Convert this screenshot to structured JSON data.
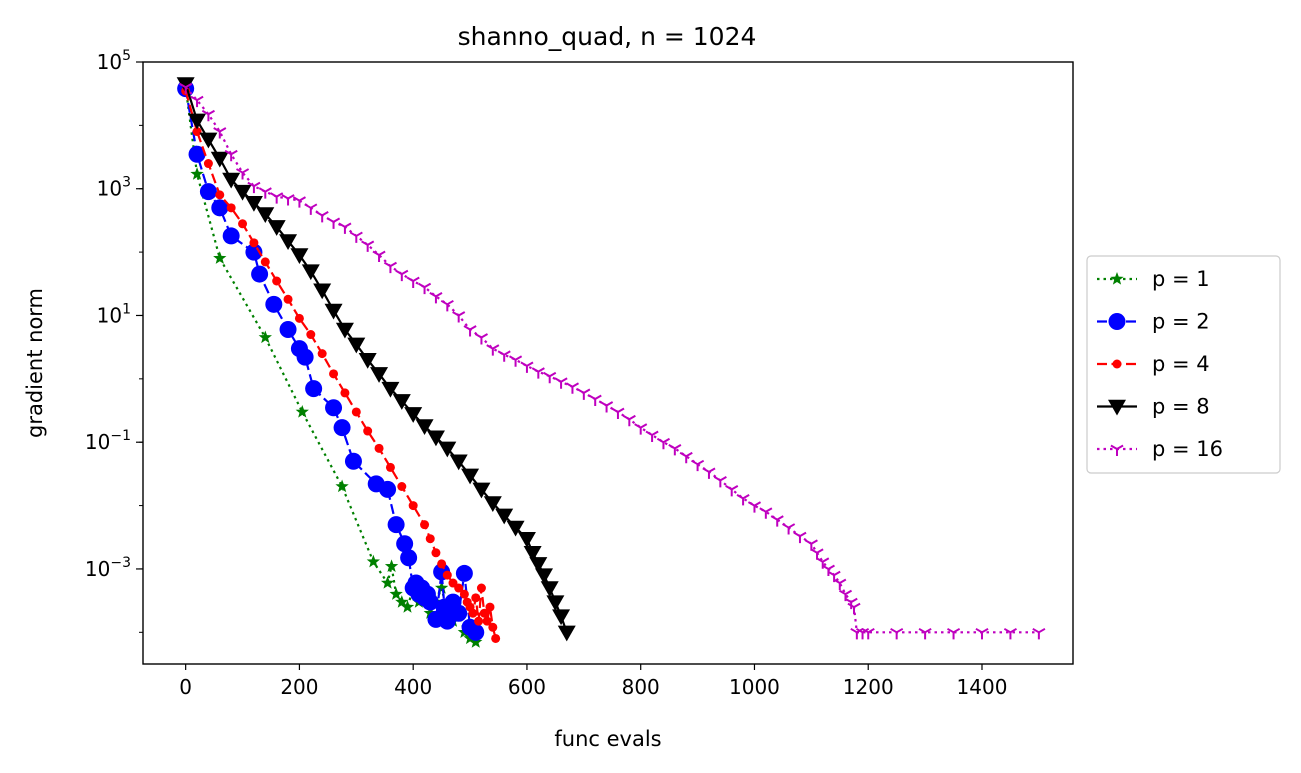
{
  "chart_data": {
    "type": "line",
    "title": "shanno_quad, n = 1024",
    "xlabel": "func evals",
    "ylabel": "gradient norm",
    "yscale": "log",
    "xlim": [
      -75,
      1560
    ],
    "ylim_exp": [
      -4.5,
      5
    ],
    "xticks": [
      0,
      200,
      400,
      600,
      800,
      1000,
      1200,
      1400
    ],
    "xtick_labels": [
      "0",
      "200",
      "400",
      "600",
      "800",
      "1000",
      "1200",
      "1400"
    ],
    "ytick_exps": [
      -3,
      -1,
      1,
      3,
      5
    ],
    "ytick_labels": [
      {
        "base": "10",
        "exp": "−3"
      },
      {
        "base": "10",
        "exp": "−1"
      },
      {
        "base": "10",
        "exp": "1"
      },
      {
        "base": "10",
        "exp": "3"
      },
      {
        "base": "10",
        "exp": "5"
      }
    ],
    "grid": false,
    "legend_position": "center-right, outside",
    "series": [
      {
        "name": "p = 1",
        "color": "#008000",
        "dash": "dotted",
        "marker": "star",
        "x": [
          0,
          20,
          60,
          140,
          205,
          275,
          330,
          355,
          362,
          370,
          380,
          390,
          400,
          410,
          420,
          430,
          440,
          450,
          460,
          470,
          480,
          490,
          500,
          510
        ],
        "y": [
          40000,
          1700,
          80,
          4.5,
          0.3,
          0.02,
          0.0013,
          0.0006,
          0.0011,
          0.0004,
          0.0003,
          0.00025,
          0.0005,
          0.0003,
          0.0004,
          0.0002,
          0.0003,
          0.0005,
          0.0002,
          0.00015,
          0.0002,
          0.0001,
          8e-05,
          7e-05
        ]
      },
      {
        "name": "p = 2",
        "color": "#0000ff",
        "dash": "dashed",
        "marker": "circle",
        "x": [
          0,
          20,
          40,
          60,
          80,
          120,
          130,
          155,
          180,
          200,
          210,
          225,
          260,
          275,
          295,
          335,
          355,
          370,
          385,
          392,
          400,
          405,
          410,
          415,
          420,
          425,
          430,
          440,
          450,
          455,
          460,
          470,
          480,
          490,
          500,
          510
        ],
        "y": [
          38000,
          3500,
          900,
          500,
          180,
          100,
          45,
          15,
          6,
          3,
          2.2,
          0.7,
          0.35,
          0.17,
          0.05,
          0.022,
          0.018,
          0.005,
          0.0025,
          0.0015,
          0.0005,
          0.0006,
          0.0004,
          0.0005,
          0.00035,
          0.0004,
          0.0003,
          0.00016,
          0.0009,
          0.00025,
          0.00015,
          0.0003,
          0.0002,
          0.00085,
          0.00012,
          0.0001
        ]
      },
      {
        "name": "p = 4",
        "color": "#ff0000",
        "dash": "dashed",
        "marker": "point",
        "x": [
          0,
          20,
          40,
          60,
          80,
          100,
          120,
          140,
          160,
          180,
          200,
          220,
          240,
          260,
          280,
          300,
          320,
          340,
          360,
          380,
          400,
          420,
          430,
          440,
          450,
          460,
          470,
          480,
          490,
          495,
          500,
          505,
          510,
          515,
          520,
          525,
          530,
          535,
          540,
          545
        ],
        "y": [
          35000,
          8000,
          2500,
          800,
          500,
          280,
          140,
          70,
          35,
          18,
          9,
          5,
          2.5,
          1.2,
          0.6,
          0.3,
          0.15,
          0.08,
          0.04,
          0.02,
          0.01,
          0.005,
          0.003,
          0.0018,
          0.0012,
          0.0008,
          0.0006,
          0.0005,
          0.0004,
          0.0003,
          0.00025,
          0.0002,
          0.00035,
          0.00015,
          0.0005,
          0.0002,
          0.00015,
          0.00025,
          0.00012,
          8e-05
        ]
      },
      {
        "name": "p = 8",
        "color": "#000000",
        "dash": "solid",
        "marker": "triangle_down",
        "x": [
          0,
          20,
          40,
          60,
          80,
          100,
          120,
          140,
          160,
          180,
          200,
          220,
          240,
          260,
          280,
          300,
          320,
          340,
          360,
          380,
          400,
          420,
          440,
          460,
          480,
          500,
          520,
          540,
          560,
          580,
          600,
          610,
          620,
          630,
          640,
          650,
          660,
          670
        ],
        "y": [
          45000,
          12000,
          6000,
          3000,
          1400,
          900,
          600,
          400,
          250,
          150,
          90,
          50,
          25,
          12,
          6,
          3.5,
          2,
          1.2,
          0.7,
          0.45,
          0.28,
          0.18,
          0.12,
          0.08,
          0.05,
          0.03,
          0.018,
          0.011,
          0.007,
          0.0045,
          0.003,
          0.0018,
          0.0012,
          0.0008,
          0.0005,
          0.0003,
          0.00018,
          0.0001
        ]
      },
      {
        "name": "p = 16",
        "color": "#bf00bf",
        "dash": "dotted",
        "marker": "tri_down",
        "x": [
          0,
          20,
          40,
          60,
          80,
          100,
          120,
          140,
          160,
          180,
          200,
          220,
          240,
          260,
          280,
          300,
          320,
          340,
          360,
          380,
          400,
          420,
          440,
          460,
          480,
          500,
          520,
          540,
          560,
          580,
          600,
          620,
          640,
          660,
          680,
          700,
          720,
          740,
          760,
          780,
          800,
          820,
          840,
          860,
          880,
          900,
          920,
          940,
          960,
          980,
          1000,
          1020,
          1040,
          1060,
          1080,
          1100,
          1110,
          1120,
          1130,
          1140,
          1150,
          1160,
          1170,
          1175,
          1180,
          1190,
          1200,
          1250,
          1300,
          1350,
          1400,
          1450,
          1500
        ],
        "y": [
          40000,
          25000,
          15000,
          8000,
          3500,
          1800,
          1100,
          900,
          750,
          700,
          650,
          500,
          380,
          300,
          250,
          180,
          130,
          90,
          60,
          45,
          35,
          28,
          20,
          15,
          10,
          6,
          4.5,
          3,
          2.4,
          2,
          1.6,
          1.3,
          1.1,
          0.9,
          0.75,
          0.6,
          0.48,
          0.38,
          0.3,
          0.23,
          0.17,
          0.13,
          0.1,
          0.08,
          0.06,
          0.045,
          0.034,
          0.025,
          0.018,
          0.013,
          0.01,
          0.008,
          0.006,
          0.0045,
          0.0033,
          0.0025,
          0.0018,
          0.0013,
          0.001,
          0.0008,
          0.0006,
          0.0004,
          0.0003,
          0.00025,
          0.0001,
          0.0001,
          0.0001,
          0.0001,
          0.0001,
          0.0001,
          0.0001,
          0.0001,
          0.0001
        ]
      }
    ]
  }
}
